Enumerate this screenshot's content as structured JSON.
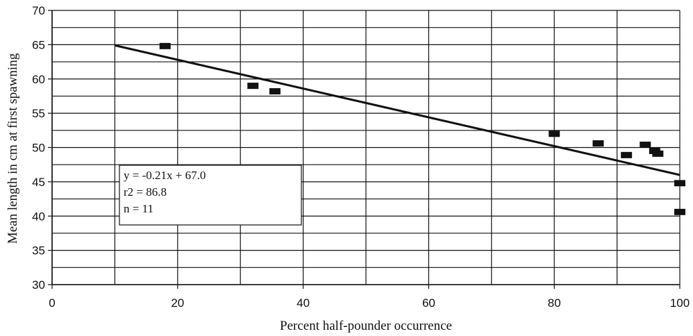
{
  "chart_data": {
    "type": "scatter",
    "title": "",
    "xlabel": "Percent half-pounder occurrence",
    "ylabel": "Mean length in cm at first spawning",
    "xlim": [
      0,
      100
    ],
    "ylim": [
      30,
      70
    ],
    "xticks": [
      0,
      20,
      40,
      60,
      80,
      100
    ],
    "yticks": [
      30,
      35,
      40,
      45,
      50,
      55,
      60,
      65,
      70
    ],
    "grid": "horizontal",
    "points": [
      {
        "x": 18,
        "y": 64.8
      },
      {
        "x": 32,
        "y": 59.0
      },
      {
        "x": 35.5,
        "y": 58.2
      },
      {
        "x": 80,
        "y": 52.0
      },
      {
        "x": 87,
        "y": 50.6
      },
      {
        "x": 91.5,
        "y": 48.9
      },
      {
        "x": 94.5,
        "y": 50.4
      },
      {
        "x": 96,
        "y": 49.5
      },
      {
        "x": 96.5,
        "y": 49.1
      },
      {
        "x": 100,
        "y": 44.8
      },
      {
        "x": 100,
        "y": 40.6
      }
    ],
    "trendline": {
      "x_start": 10,
      "x_end": 100,
      "slope": -0.21,
      "intercept": 67.0
    },
    "annotation": {
      "lines": [
        "y = -0.21x + 67.0",
        "r2 = 86.8",
        "n = 11"
      ]
    }
  }
}
